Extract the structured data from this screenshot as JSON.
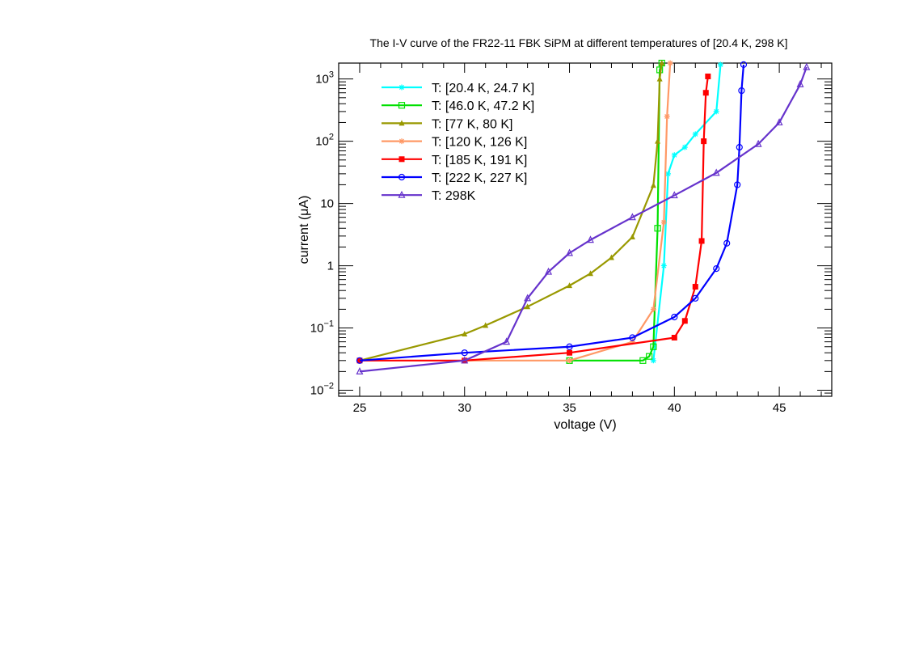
{
  "chart_data": {
    "type": "line",
    "title": "The I-V curve of the FR22-11 FBK SiPM at different temperatures of [20.4 K, 298 K]",
    "xlabel": "voltage (V)",
    "ylabel": "current (μA)",
    "xlim": [
      24,
      47.5
    ],
    "ylim": [
      0.008,
      1800
    ],
    "yscale": "log",
    "x_ticks": [
      {
        "value": 25,
        "label": "25"
      },
      {
        "value": 30,
        "label": "30"
      },
      {
        "value": 35,
        "label": "35"
      },
      {
        "value": 40,
        "label": "40"
      },
      {
        "value": 45,
        "label": "45"
      }
    ],
    "y_ticks": [
      {
        "value": 0.01,
        "base": "10",
        "exp": "−2",
        "label": ""
      },
      {
        "value": 0.1,
        "base": "10",
        "exp": "−1",
        "label": ""
      },
      {
        "value": 1,
        "base": "",
        "exp": "",
        "label": "1"
      },
      {
        "value": 10,
        "base": "",
        "exp": "",
        "label": "10"
      },
      {
        "value": 100,
        "base": "10",
        "exp": "2",
        "label": ""
      },
      {
        "value": 1000,
        "base": "10",
        "exp": "3",
        "label": ""
      }
    ],
    "legend_position": "top-left",
    "series": [
      {
        "name": "T: [20.4 K, 24.7 K]",
        "color": "#00ffff",
        "marker": "star",
        "x": [
          39.0,
          39.5,
          39.7,
          40.0,
          40.5,
          41.0,
          42.0,
          42.2
        ],
        "y": [
          0.03,
          1.0,
          30,
          60,
          80,
          130,
          300,
          1700
        ]
      },
      {
        "name": "T: [46.0 K, 47.2 K]",
        "color": "#00e000",
        "marker": "open-square",
        "x": [
          35.0,
          38.5,
          38.8,
          39.0,
          39.2,
          39.3,
          39.4
        ],
        "y": [
          0.03,
          0.03,
          0.035,
          0.05,
          4.0,
          1400,
          1800
        ]
      },
      {
        "name": "T: [77 K, 80 K]",
        "color": "#999900",
        "marker": "triangle",
        "x": [
          25,
          30,
          31,
          33,
          35,
          36,
          37,
          38,
          39,
          39.2,
          39.3,
          39.4
        ],
        "y": [
          0.03,
          0.08,
          0.11,
          0.22,
          0.48,
          0.75,
          1.35,
          2.9,
          19.5,
          100,
          1000,
          1800
        ]
      },
      {
        "name": "T: [120 K, 126 K]",
        "color": "#ff9966",
        "marker": "star",
        "x": [
          30,
          35,
          38,
          39.0,
          39.5,
          39.65,
          39.8
        ],
        "y": [
          0.03,
          0.03,
          0.06,
          0.2,
          5.0,
          250,
          1800
        ]
      },
      {
        "name": "T: [185 K, 191 K]",
        "color": "#ff0000",
        "marker": "square",
        "x": [
          25,
          30,
          35,
          40.0,
          40.5,
          41.0,
          41.3,
          41.4,
          41.5,
          41.6
        ],
        "y": [
          0.03,
          0.03,
          0.04,
          0.07,
          0.13,
          0.46,
          2.5,
          100,
          600,
          1100
        ]
      },
      {
        "name": "T: [222 K, 227 K]",
        "color": "#0000ff",
        "marker": "open-circle",
        "x": [
          25,
          30,
          35,
          38,
          40,
          41,
          42,
          42.5,
          43.0,
          43.1,
          43.2,
          43.3
        ],
        "y": [
          0.03,
          0.04,
          0.05,
          0.07,
          0.15,
          0.3,
          0.9,
          2.3,
          20,
          80,
          650,
          1700
        ]
      },
      {
        "name": "T: 298K",
        "color": "#6633cc",
        "marker": "open-triangle",
        "x": [
          25,
          30,
          32,
          33,
          34,
          35,
          36,
          38,
          40,
          42,
          44,
          45,
          46,
          46.3
        ],
        "y": [
          0.02,
          0.03,
          0.06,
          0.3,
          0.8,
          1.6,
          2.6,
          6.0,
          13.5,
          31,
          90,
          200,
          820,
          1550
        ]
      }
    ]
  }
}
